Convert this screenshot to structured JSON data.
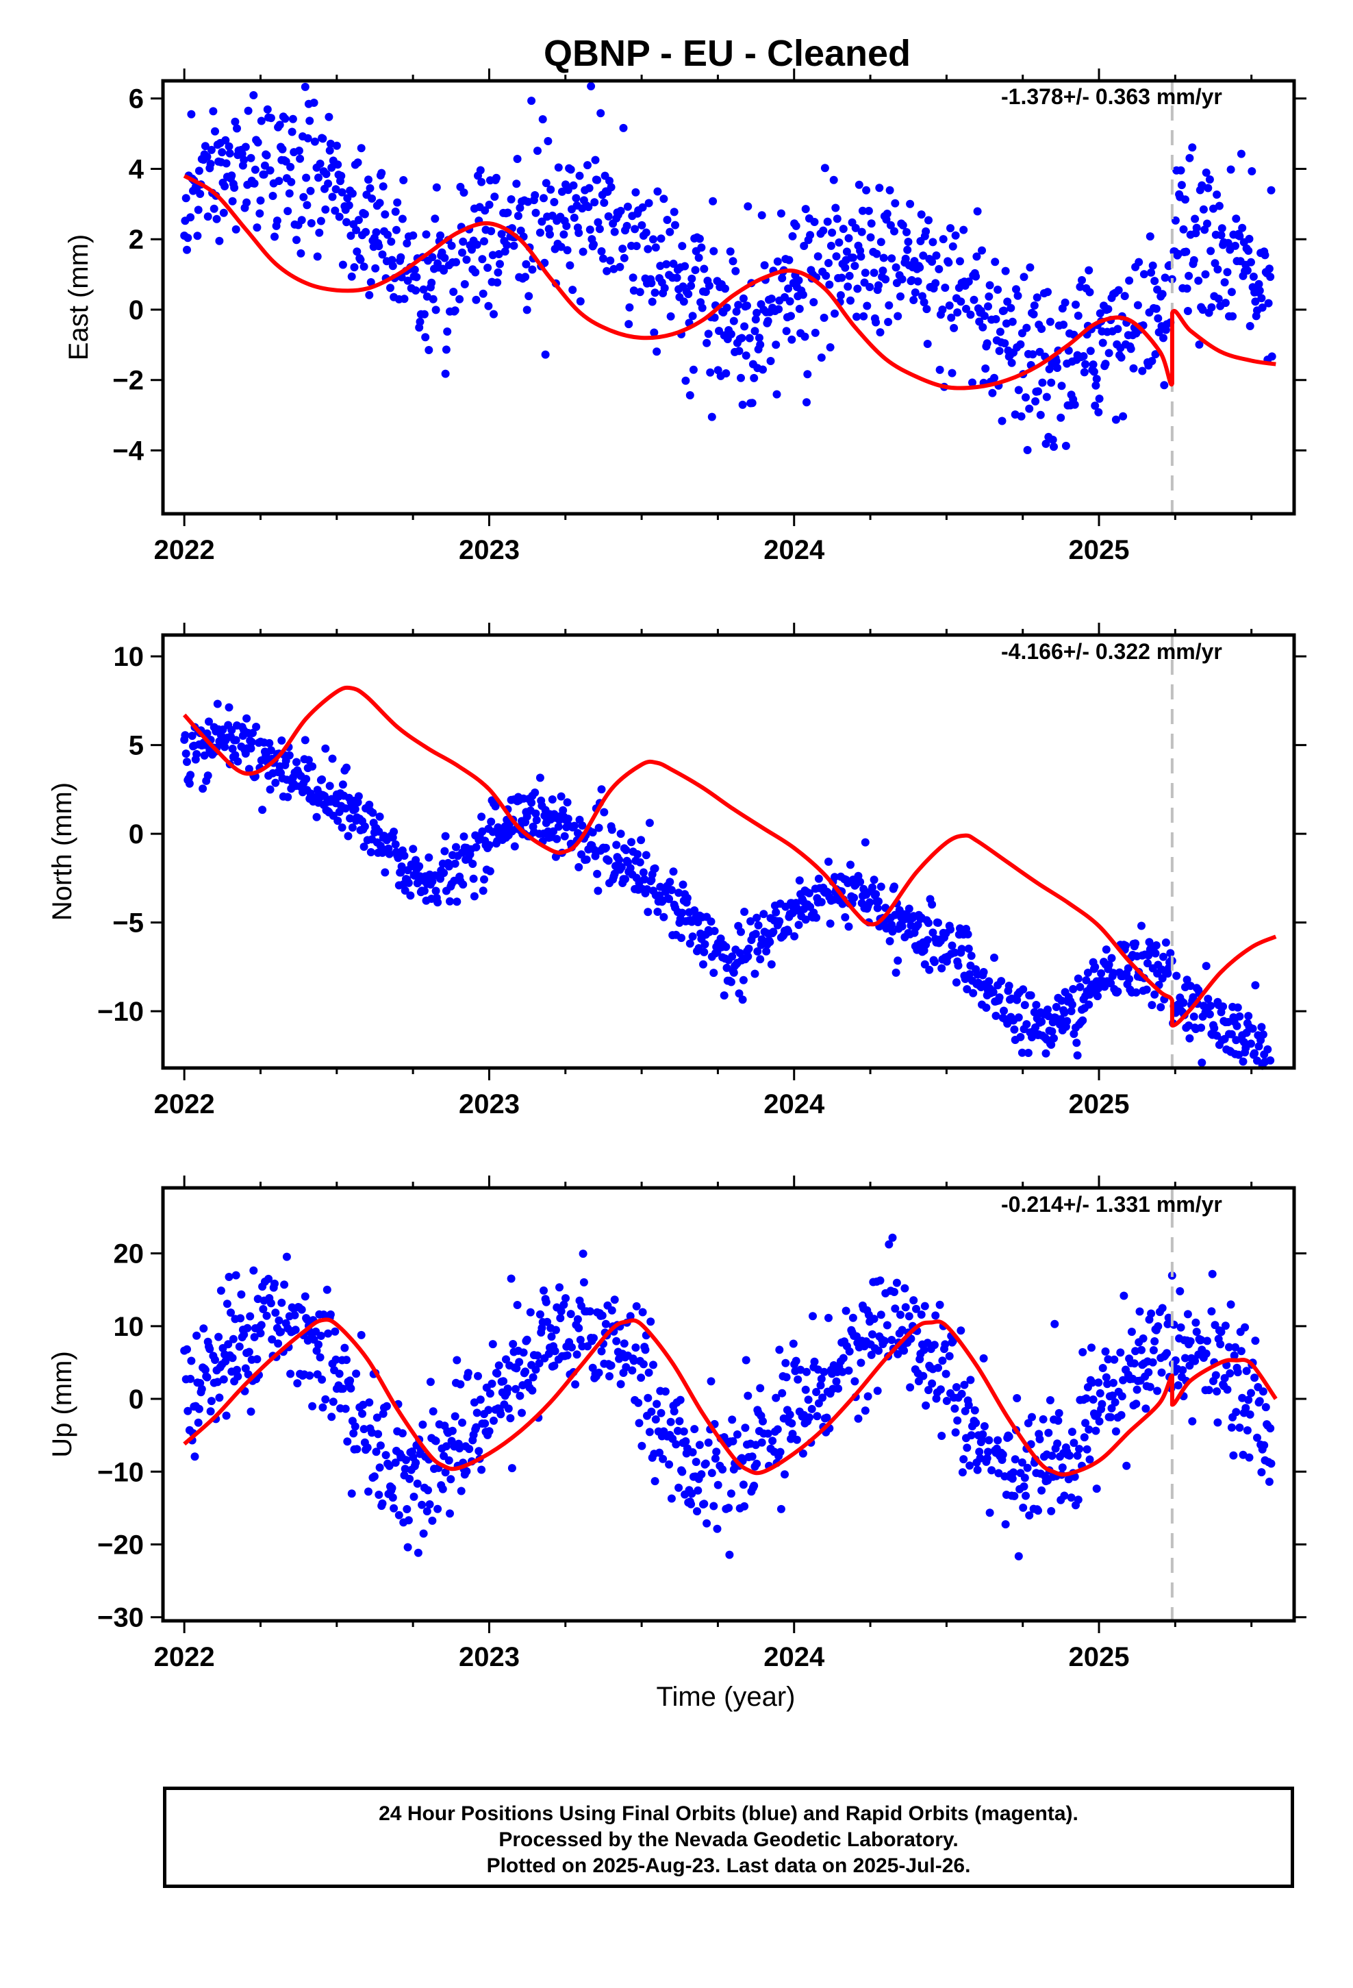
{
  "title": "QBNP  - EU - Cleaned",
  "xlabel": "Time (year)",
  "colors": {
    "final_orbits": "#0000ff",
    "fit": "#ff0000",
    "equipment_change": "#c0c0c0"
  },
  "footer": {
    "line1": "24 Hour Positions Using Final Orbits (blue) and Rapid Orbits (magenta).",
    "line2": "Processed by the Nevada Geodetic Laboratory.",
    "line3": "Plotted on 2025-Aug-23. Last data on 2025-Jul-26."
  },
  "chart_data": [
    {
      "type": "scatter",
      "ylabel": "East (mm)",
      "rate_label": "-1.378+/- 0.363 mm/yr",
      "xlim": [
        2021.93,
        2025.64
      ],
      "ylim": [
        -5.8,
        6.5
      ],
      "xticks": [
        2022,
        2023,
        2024,
        2025
      ],
      "xtick_labels": [
        "2022",
        "2023",
        "2024",
        "2025"
      ],
      "yticks": [
        -4,
        -2,
        0,
        2,
        4,
        6
      ],
      "ytick_labels": [
        "−4",
        "−2",
        "0",
        "2",
        "4",
        "6"
      ],
      "discontinuity_x": 2025.24,
      "fit_model": {
        "rate": -1.378,
        "offset": 3.5,
        "annual_cos": -0.35,
        "annual_sin": 1.15,
        "semi_cos": 0.15,
        "semi_sin": 0.1,
        "jump": 2.0,
        "scatter_sd": 1.1
      },
      "fit_curve": {
        "x": [
          2022.0,
          2022.1,
          2022.2,
          2022.3,
          2022.4,
          2022.5,
          2022.6,
          2022.7,
          2022.8,
          2022.9,
          2023.0,
          2023.1,
          2023.2,
          2023.3,
          2023.4,
          2023.5,
          2023.6,
          2023.7,
          2023.8,
          2023.9,
          2024.0,
          2024.1,
          2024.2,
          2024.3,
          2024.4,
          2024.5,
          2024.6,
          2024.7,
          2024.8,
          2024.9,
          2025.0,
          2025.1,
          2025.2,
          2025.24,
          2025.24,
          2025.3,
          2025.4,
          2025.5,
          2025.58
        ],
        "y": [
          3.8,
          3.3,
          2.3,
          1.3,
          0.75,
          0.55,
          0.6,
          1.0,
          1.6,
          2.2,
          2.45,
          2.0,
          0.9,
          -0.1,
          -0.6,
          -0.8,
          -0.7,
          -0.3,
          0.4,
          0.9,
          1.1,
          0.6,
          -0.5,
          -1.4,
          -1.9,
          -2.2,
          -2.2,
          -2.0,
          -1.6,
          -1.0,
          -0.35,
          -0.3,
          -1.2,
          -2.1,
          -0.1,
          -0.6,
          -1.2,
          -1.45,
          -1.55
        ]
      }
    },
    {
      "type": "scatter",
      "ylabel": "North (mm)",
      "rate_label": "-4.166+/- 0.322 mm/yr",
      "xlim": [
        2021.93,
        2025.64
      ],
      "ylim": [
        -13.2,
        11.2
      ],
      "xticks": [
        2022,
        2023,
        2024,
        2025
      ],
      "xtick_labels": [
        "2022",
        "2023",
        "2024",
        "2025"
      ],
      "yticks": [
        -10,
        -5,
        0,
        5,
        10
      ],
      "ytick_labels": [
        "−10",
        "−5",
        "0",
        "5",
        "10"
      ],
      "discontinuity_x": 2025.24,
      "fit_model": {
        "rate": -4.166,
        "offset": 3.6,
        "annual_cos": 0.0,
        "annual_sin": 2.3,
        "semi_cos": 0.4,
        "semi_sin": 0.5,
        "jump": -1.2,
        "scatter_sd": 0.9
      },
      "fit_curve": {
        "x": [
          2022.0,
          2022.1,
          2022.2,
          2022.3,
          2022.4,
          2022.5,
          2022.55,
          2022.6,
          2022.7,
          2022.8,
          2022.9,
          2023.0,
          2023.1,
          2023.2,
          2023.25,
          2023.3,
          2023.4,
          2023.5,
          2023.55,
          2023.6,
          2023.7,
          2023.8,
          2023.9,
          2024.0,
          2024.1,
          2024.2,
          2024.25,
          2024.3,
          2024.4,
          2024.5,
          2024.56,
          2024.6,
          2024.7,
          2024.8,
          2024.9,
          2025.0,
          2025.1,
          2025.2,
          2025.24,
          2025.24,
          2025.3,
          2025.4,
          2025.5,
          2025.58
        ],
        "y": [
          6.7,
          4.8,
          3.4,
          4.2,
          6.5,
          8.0,
          8.2,
          7.7,
          6.0,
          4.8,
          3.8,
          2.5,
          0.3,
          -0.9,
          -1.0,
          -0.3,
          2.5,
          3.9,
          4.0,
          3.6,
          2.6,
          1.4,
          0.3,
          -0.8,
          -2.3,
          -4.4,
          -5.1,
          -4.6,
          -2.2,
          -0.5,
          -0.1,
          -0.4,
          -1.6,
          -2.8,
          -3.9,
          -5.2,
          -7.2,
          -8.9,
          -9.4,
          -10.8,
          -9.9,
          -7.8,
          -6.4,
          -5.8
        ]
      }
    },
    {
      "type": "scatter",
      "ylabel": "Up (mm)",
      "rate_label": "-0.214+/- 1.331 mm/yr",
      "xlim": [
        2021.93,
        2025.64
      ],
      "ylim": [
        -30.5,
        29.0
      ],
      "xticks": [
        2022,
        2023,
        2024,
        2025
      ],
      "xtick_labels": [
        "2022",
        "2023",
        "2024",
        "2025"
      ],
      "yticks": [
        -30,
        -20,
        -10,
        0,
        10,
        20
      ],
      "ytick_labels": [
        "−30",
        "−20",
        "−10",
        "0",
        "10",
        "20"
      ],
      "discontinuity_x": 2025.24,
      "fit_model": {
        "rate": -0.214,
        "offset": 0.5,
        "annual_cos": -2.0,
        "annual_sin": 9.8,
        "semi_cos": 0.8,
        "semi_sin": -1.2,
        "jump": -4.0,
        "scatter_sd": 4.3
      },
      "fit_curve": {
        "x": [
          2022.0,
          2022.1,
          2022.2,
          2022.3,
          2022.4,
          2022.45,
          2022.5,
          2022.6,
          2022.7,
          2022.8,
          2022.85,
          2022.9,
          2023.0,
          2023.1,
          2023.2,
          2023.3,
          2023.4,
          2023.45,
          2023.5,
          2023.6,
          2023.7,
          2023.8,
          2023.85,
          2023.9,
          2024.0,
          2024.1,
          2024.2,
          2024.3,
          2024.4,
          2024.45,
          2024.5,
          2024.6,
          2024.7,
          2024.8,
          2024.85,
          2024.9,
          2025.0,
          2025.1,
          2025.2,
          2025.24,
          2025.24,
          2025.3,
          2025.4,
          2025.45,
          2025.5,
          2025.58
        ],
        "y": [
          -6.2,
          -2.5,
          2.0,
          6.0,
          9.5,
          10.8,
          10.2,
          5.5,
          -1.5,
          -7.5,
          -9.2,
          -9.5,
          -7.5,
          -4.5,
          -0.5,
          4.5,
          9.5,
          10.6,
          10.2,
          5.0,
          -2.0,
          -8.0,
          -9.8,
          -10.0,
          -7.5,
          -4.0,
          0.5,
          5.5,
          9.8,
          10.5,
          10.0,
          4.5,
          -2.5,
          -8.5,
          -10.0,
          -10.3,
          -8.5,
          -4.5,
          -0.5,
          3.2,
          -0.8,
          2.5,
          5.0,
          5.3,
          4.8,
          0.0
        ]
      }
    }
  ]
}
